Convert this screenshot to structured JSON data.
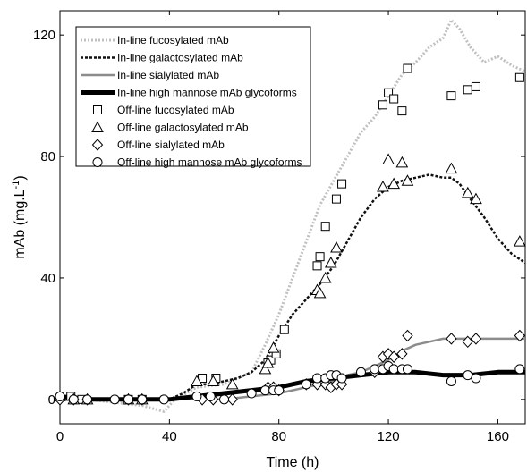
{
  "chart_data": {
    "type": "line",
    "xlabel": "Time (h)",
    "ylabel": {
      "base": "mAb (mg.L",
      "sup": "-1",
      "end": ")"
    },
    "xlim": [
      0,
      170
    ],
    "ylim": [
      -8,
      128
    ],
    "xticks": [
      0,
      40,
      80,
      120,
      160
    ],
    "yticks": [
      0,
      40,
      80,
      120
    ],
    "grid": false,
    "legend_position": "top-left",
    "lines": [
      {
        "name": "In-line fucosylated mAb",
        "color": "#c0c0c0",
        "style": "dotted",
        "x": [
          0,
          10,
          20,
          30,
          38,
          42,
          50,
          60,
          70,
          75,
          80,
          85,
          90,
          95,
          100,
          105,
          110,
          115,
          120,
          125,
          130,
          135,
          140,
          143,
          146,
          150,
          155,
          160,
          165,
          170
        ],
        "y": [
          0,
          0,
          -1,
          -2,
          -4,
          0,
          4,
          5,
          9,
          18,
          28,
          40,
          52,
          64,
          72,
          80,
          88,
          93,
          100,
          107,
          111,
          116,
          119,
          125,
          122,
          116,
          111,
          113,
          110,
          108
        ]
      },
      {
        "name": "In-line galactosylated mAb",
        "color": "#111111",
        "style": "dashed",
        "x": [
          0,
          10,
          20,
          30,
          40,
          45,
          50,
          55,
          60,
          65,
          70,
          75,
          80,
          85,
          90,
          95,
          100,
          105,
          110,
          115,
          120,
          125,
          130,
          135,
          140,
          143,
          146,
          150,
          155,
          160,
          165,
          170
        ],
        "y": [
          0,
          0,
          0,
          0,
          0,
          2,
          5,
          5,
          6,
          7,
          9,
          13,
          21,
          28,
          33,
          38,
          44,
          52,
          60,
          66,
          70,
          72,
          73,
          74,
          73,
          73,
          71,
          66,
          60,
          53,
          48,
          45
        ]
      },
      {
        "name": "In-line sialylated mAb",
        "color": "#8c8c8c",
        "style": "solid",
        "x": [
          0,
          10,
          20,
          30,
          40,
          50,
          60,
          70,
          80,
          90,
          100,
          105,
          110,
          115,
          120,
          125,
          130,
          135,
          140,
          145,
          150,
          155,
          160,
          165,
          170
        ],
        "y": [
          0,
          0,
          0,
          0,
          0,
          0,
          0,
          1,
          2,
          4,
          6,
          8,
          9,
          11,
          13,
          16,
          18,
          19,
          20,
          20,
          20,
          20,
          20,
          20,
          20
        ]
      },
      {
        "name": "In-line high mannose mAb glycoforms",
        "color": "#000000",
        "style": "thick",
        "x": [
          0,
          10,
          20,
          30,
          40,
          50,
          60,
          70,
          80,
          90,
          100,
          110,
          120,
          130,
          140,
          150,
          160,
          170
        ],
        "y": [
          1,
          0,
          0,
          0,
          0,
          1,
          2,
          3,
          4,
          6,
          7,
          8,
          9,
          9,
          8,
          8,
          9,
          9
        ]
      }
    ],
    "markers": [
      {
        "name": "Off-line fucosylated mAb",
        "marker": "square",
        "x": [
          4,
          8,
          25,
          30,
          52,
          57,
          76,
          77,
          79,
          82,
          94,
          95,
          97,
          101,
          103,
          118,
          120,
          122,
          125,
          127,
          143,
          149,
          152,
          168
        ],
        "y": [
          1,
          0,
          0,
          0,
          7,
          7,
          12,
          13,
          15,
          23,
          44,
          47,
          57,
          66,
          71,
          97,
          101,
          99,
          95,
          109,
          100,
          102,
          103,
          106
        ]
      },
      {
        "name": "Off-line galactosylated mAb",
        "marker": "triangle",
        "x": [
          0,
          5,
          10,
          25,
          30,
          50,
          56,
          63,
          75,
          76,
          78,
          94,
          95,
          97,
          99,
          101,
          118,
          120,
          122,
          125,
          127,
          143,
          149,
          152,
          168
        ],
        "y": [
          1,
          0,
          0,
          0,
          0,
          6,
          6,
          5,
          10,
          12,
          17,
          36,
          35,
          40,
          45,
          50,
          70,
          79,
          71,
          78,
          72,
          76,
          68,
          66,
          52
        ]
      },
      {
        "name": "Off-line sialylated mAb",
        "marker": "diamond",
        "x": [
          0,
          5,
          10,
          25,
          30,
          52,
          56,
          63,
          76,
          78,
          80,
          90,
          94,
          97,
          99,
          101,
          103,
          115,
          118,
          120,
          122,
          125,
          127,
          143,
          149,
          152,
          168
        ],
        "y": [
          0,
          0,
          0,
          0,
          0,
          0,
          0,
          0,
          4,
          4,
          3,
          5,
          5,
          5,
          4,
          5,
          5,
          9,
          14,
          15,
          14,
          15,
          21,
          20,
          19,
          20,
          21
        ]
      },
      {
        "name": "Off-line high mannose mAb glycoforms",
        "marker": "circle",
        "x": [
          0,
          5,
          10,
          20,
          25,
          30,
          38,
          50,
          55,
          60,
          70,
          75,
          78,
          80,
          90,
          94,
          97,
          99,
          101,
          103,
          110,
          115,
          118,
          120,
          122,
          125,
          127,
          143,
          149,
          152,
          168
        ],
        "y": [
          1,
          0,
          0,
          0,
          0,
          0,
          0,
          1,
          1,
          0,
          2,
          3,
          3,
          3,
          5,
          7,
          7,
          8,
          8,
          7,
          9,
          10,
          10,
          11,
          10,
          10,
          10,
          6,
          8,
          7,
          10
        ]
      }
    ]
  }
}
